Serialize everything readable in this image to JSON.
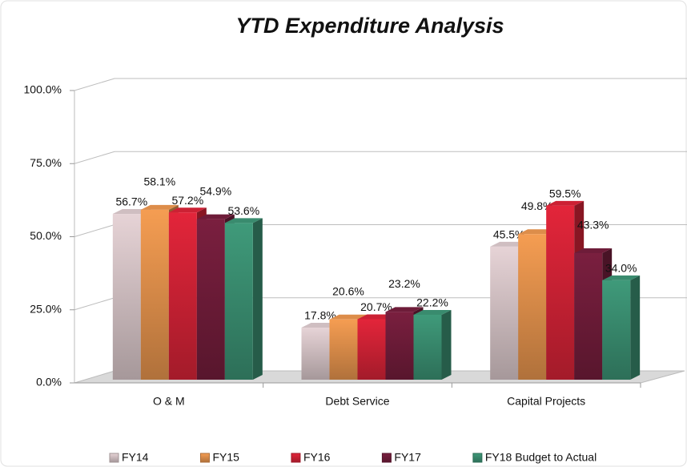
{
  "chart_data": {
    "type": "bar3d",
    "title": "YTD Expenditure Analysis",
    "categories": [
      "O & M",
      "Debt Service",
      "Capital Projects"
    ],
    "series": [
      {
        "name": "FY14",
        "color": "#e6d3d6",
        "values": [
          56.7,
          17.8,
          45.5
        ],
        "value_labels": [
          "56.7%",
          "17.8%",
          "45.5%"
        ]
      },
      {
        "name": "FY15",
        "color": "#f59d52",
        "values": [
          58.1,
          20.6,
          49.8
        ],
        "value_labels": [
          "58.1%",
          "20.6%",
          "49.8%"
        ]
      },
      {
        "name": "FY16",
        "color": "#e3253a",
        "values": [
          57.2,
          20.7,
          59.5
        ],
        "value_labels": [
          "57.2%",
          "20.7%",
          "59.5%"
        ]
      },
      {
        "name": "FY17",
        "color": "#7a1f3f",
        "values": [
          54.9,
          23.2,
          43.3
        ],
        "value_labels": [
          "54.9%",
          "23.2%",
          "43.3%"
        ]
      },
      {
        "name": "FY18 Budget to Actual",
        "color": "#3f9a7a",
        "values": [
          53.6,
          22.2,
          34.0
        ],
        "value_labels": [
          "53.6%",
          "22.2%",
          "34.0%"
        ]
      }
    ],
    "ylim": [
      0,
      100
    ],
    "yticks": [
      {
        "value": 0,
        "label": "0.0%"
      },
      {
        "value": 25,
        "label": "25.0%"
      },
      {
        "value": 50,
        "label": "50.0%"
      },
      {
        "value": 75,
        "label": "75.0%"
      },
      {
        "value": 100,
        "label": "100.0%"
      }
    ],
    "grid": true,
    "legend": "bottom"
  }
}
